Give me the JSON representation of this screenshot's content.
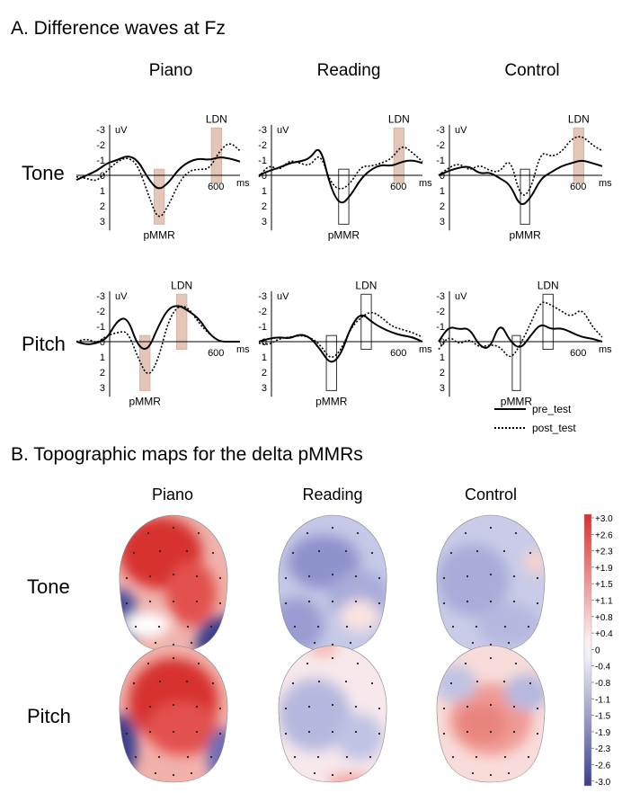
{
  "panel_a": {
    "title": "A. Difference waves at Fz",
    "columns": [
      "Piano",
      "Reading",
      "Control"
    ],
    "rows": [
      "Tone",
      "Pitch"
    ],
    "y_unit": "uV",
    "x_unit": "ms",
    "x_tick": "600",
    "y_ticks": [
      "-3",
      "-2",
      "-1",
      "0",
      "1",
      "2",
      "3"
    ],
    "labels": {
      "mmr": "pMMR",
      "ldn": "LDN"
    },
    "legend": [
      {
        "name": "pre_test",
        "style": "solid"
      },
      {
        "name": "post_test",
        "style": "dotted"
      }
    ]
  },
  "panel_b": {
    "title": "B. Topographic maps for the delta pMMRs",
    "columns": [
      "Piano",
      "Reading",
      "Control"
    ],
    "rows": [
      "Tone",
      "Pitch"
    ],
    "colorbar_ticks": [
      "+3.0",
      "+2.6",
      "+2.3",
      "+1.9",
      "+1.5",
      "+1.1",
      "+0.8",
      "+0.4",
      "0",
      "-0.4",
      "-0.8",
      "-1.1",
      "-1.5",
      "-1.9",
      "-2.3",
      "-2.6",
      "-3.0"
    ],
    "colors": {
      "positive_max": "#d7302f",
      "neutral": "#fbf2f2",
      "negative_max": "#3b3f8c"
    }
  },
  "chart_data": [
    {
      "type": "line",
      "title": "Tone",
      "subtitle": "Piano",
      "x": [
        -100,
        -50,
        0,
        50,
        100,
        150,
        200,
        250,
        300,
        350,
        400,
        450,
        500,
        550,
        600,
        650,
        700
      ],
      "series": [
        {
          "name": "pre_test",
          "values": [
            0.3,
            0.0,
            -0.3,
            -0.8,
            -1.0,
            -1.3,
            -1.0,
            0.2,
            1.0,
            0.5,
            -0.4,
            -0.9,
            -1.1,
            -1.0,
            -1.2,
            -1.1,
            -0.9
          ]
        },
        {
          "name": "post_test",
          "values": [
            0.1,
            0.2,
            0.4,
            -0.3,
            -0.9,
            -1.2,
            -0.7,
            1.2,
            3.0,
            2.0,
            0.5,
            -0.3,
            -0.4,
            -0.4,
            -1.6,
            -2.2,
            -1.6
          ]
        }
      ],
      "highlights": [
        {
          "label": "pMMR",
          "x_range": [
            280,
            330
          ]
        },
        {
          "label": "LDN",
          "x_range": [
            560,
            610
          ]
        }
      ],
      "ylim": [
        -3,
        3
      ],
      "ylabel": "uV",
      "xlabel": "ms"
    },
    {
      "type": "line",
      "title": "Tone",
      "subtitle": "Reading",
      "x": [
        -100,
        -50,
        0,
        50,
        100,
        150,
        200,
        250,
        300,
        350,
        400,
        450,
        500,
        550,
        600,
        650,
        700
      ],
      "series": [
        {
          "name": "pre_test",
          "values": [
            0.0,
            -0.3,
            -0.5,
            -0.8,
            -0.9,
            -1.1,
            -2.0,
            0.8,
            2.0,
            1.3,
            0.2,
            -0.4,
            -0.7,
            -0.6,
            -0.9,
            -1.0,
            -0.8
          ]
        },
        {
          "name": "post_test",
          "values": [
            0.1,
            -0.7,
            -0.3,
            -1.0,
            -0.8,
            -0.6,
            -1.5,
            0.5,
            1.0,
            0.5,
            -0.6,
            -0.6,
            -0.8,
            -1.1,
            -2.0,
            -1.5,
            -0.9
          ]
        }
      ],
      "highlights": [
        {
          "label": "pMMR",
          "x_range": [
            290,
            340
          ]
        },
        {
          "label": "LDN",
          "x_range": [
            560,
            610
          ]
        }
      ],
      "ylim": [
        -3,
        3
      ],
      "ylabel": "uV",
      "xlabel": "ms"
    },
    {
      "type": "line",
      "title": "Tone",
      "subtitle": "Control",
      "x": [
        -100,
        -50,
        0,
        50,
        100,
        150,
        200,
        250,
        300,
        350,
        400,
        450,
        500,
        550,
        600,
        650,
        700
      ],
      "series": [
        {
          "name": "pre_test",
          "values": [
            0.0,
            -0.3,
            -0.5,
            -0.6,
            -0.1,
            -0.2,
            0.2,
            0.6,
            2.1,
            1.5,
            0.2,
            -0.2,
            -0.6,
            -0.8,
            -1.0,
            -0.8,
            -0.6
          ]
        },
        {
          "name": "post_test",
          "values": [
            0.0,
            -0.5,
            -0.8,
            -0.3,
            -0.7,
            -0.3,
            -0.2,
            -1.2,
            1.5,
            1.0,
            -1.6,
            -1.2,
            -1.5,
            -2.4,
            -2.6,
            -2.0,
            -1.6
          ]
        }
      ],
      "highlights": [
        {
          "label": "pMMR",
          "x_range": [
            300,
            345
          ]
        },
        {
          "label": "LDN",
          "x_range": [
            560,
            610
          ]
        }
      ],
      "ylim": [
        -3,
        3
      ],
      "ylabel": "uV",
      "xlabel": "ms"
    },
    {
      "type": "line",
      "title": "Pitch",
      "subtitle": "Piano",
      "x": [
        -100,
        -50,
        0,
        50,
        100,
        150,
        200,
        250,
        300,
        350,
        400,
        450,
        500,
        550,
        600,
        650,
        700
      ],
      "series": [
        {
          "name": "pre_test",
          "values": [
            0.0,
            0.2,
            0.1,
            -0.2,
            -1.4,
            -1.6,
            0.3,
            0.6,
            -1.0,
            -2.2,
            -2.4,
            -2.0,
            -1.5,
            -0.5,
            0.0,
            0.0,
            0.0
          ]
        },
        {
          "name": "post_test",
          "values": [
            0.0,
            -0.2,
            0.1,
            -0.4,
            -0.6,
            -0.7,
            1.0,
            2.4,
            1.2,
            -1.4,
            -2.4,
            -2.2,
            -1.2,
            -0.5,
            0.0,
            0.0,
            0.0
          ]
        }
      ],
      "highlights": [
        {
          "label": "pMMR",
          "x_range": [
            210,
            260
          ]
        },
        {
          "label": "LDN",
          "x_range": [
            390,
            440
          ]
        }
      ],
      "ylim": [
        -3,
        3
      ],
      "ylabel": "uV",
      "xlabel": "ms"
    },
    {
      "type": "line",
      "title": "Pitch",
      "subtitle": "Reading",
      "x": [
        -100,
        -50,
        0,
        50,
        100,
        150,
        200,
        250,
        300,
        350,
        400,
        450,
        500,
        550,
        600,
        650,
        700
      ],
      "series": [
        {
          "name": "pre_test",
          "values": [
            0.0,
            -0.2,
            -0.3,
            -0.2,
            -0.5,
            -0.3,
            0.5,
            1.5,
            0.9,
            -1.0,
            -1.9,
            -1.3,
            -0.9,
            -0.6,
            -0.4,
            -0.3,
            0.0
          ]
        },
        {
          "name": "post_test",
          "values": [
            0.1,
            0.2,
            -0.2,
            -0.3,
            -0.4,
            -0.3,
            0.2,
            1.2,
            0.6,
            -0.9,
            -1.6,
            -2.0,
            -1.6,
            -1.0,
            -0.8,
            -0.6,
            -0.3
          ]
        }
      ],
      "highlights": [
        {
          "label": "pMMR",
          "x_range": [
            230,
            280
          ]
        },
        {
          "label": "LDN",
          "x_range": [
            400,
            450
          ]
        }
      ],
      "ylim": [
        -3,
        3
      ],
      "ylabel": "uV",
      "xlabel": "ms"
    },
    {
      "type": "line",
      "title": "Pitch",
      "subtitle": "Control",
      "x": [
        -100,
        -50,
        0,
        50,
        100,
        150,
        200,
        250,
        300,
        350,
        400,
        450,
        500,
        550,
        600,
        650,
        700
      ],
      "series": [
        {
          "name": "pre_test",
          "values": [
            0.0,
            -1.0,
            -0.8,
            -0.9,
            0.3,
            0.5,
            -1.3,
            0.0,
            0.5,
            -0.4,
            -1.2,
            -0.8,
            -0.9,
            -0.6,
            -0.3,
            -0.2,
            0.0
          ]
        },
        {
          "name": "post_test",
          "values": [
            0.5,
            -0.4,
            0.2,
            -0.2,
            0.4,
            0.2,
            0.3,
            1.2,
            0.2,
            -1.2,
            -2.7,
            -2.4,
            -2.0,
            -1.6,
            -2.2,
            -1.0,
            -0.3
          ]
        }
      ],
      "highlights": [
        {
          "label": "pMMR",
          "x_range": [
            260,
            300
          ]
        },
        {
          "label": "LDN",
          "x_range": [
            410,
            460
          ]
        }
      ],
      "ylim": [
        -3,
        3
      ],
      "ylabel": "uV",
      "xlabel": "ms"
    }
  ]
}
